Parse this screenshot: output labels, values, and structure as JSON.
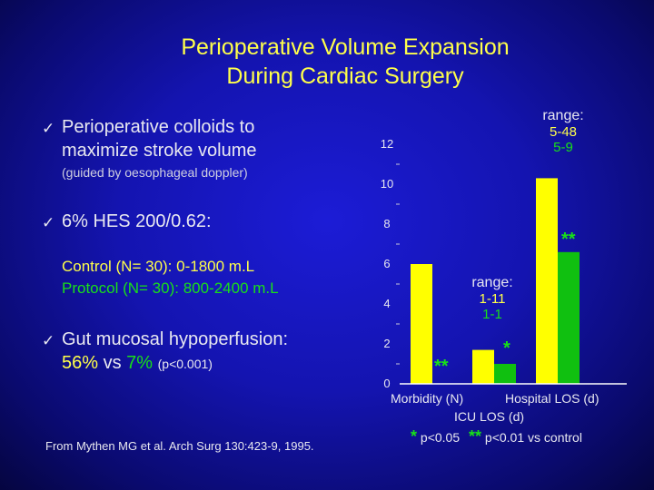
{
  "slide": {
    "title_line1": "Perioperative Volume Expansion",
    "title_line2": "During Cardiac Surgery",
    "check_glyph": "✓",
    "bullet1_line1": "Perioperative colloids to",
    "bullet1_line2": "maximize stroke volume",
    "bullet1_note": "(guided by oesophageal doppler)",
    "bullet2": "6% HES 200/0.62:",
    "control_line": "Control (N= 30): 0-1800 m.L",
    "protocol_line": "Protocol (N= 30): 800-2400 m.L",
    "bullet3_line1": "Gut mucosal hypoperfusion:",
    "result_pct1": "56%",
    "result_vs": "vs",
    "result_pct2": "7%",
    "result_p": "(p<0.001)",
    "citation": "From Mythen MG et al. Arch Surg 130:423-9, 1995."
  },
  "colors": {
    "control": "#ffff00",
    "protocol": "#10c010",
    "title": "#ffff4a",
    "background": "#1414b0"
  },
  "chart_data": {
    "type": "bar",
    "categories": [
      "Morbidity (N)",
      "ICU LOS (d)",
      "Hospital LOS (d)"
    ],
    "series": [
      {
        "color": "#ffff00",
        "values": [
          6,
          1.7,
          10.3
        ]
      },
      {
        "color": "#10c010",
        "values": [
          0,
          1,
          6.6
        ]
      }
    ],
    "y_ticks": [
      "0",
      "2",
      "4",
      "6",
      "8",
      "10",
      "12"
    ],
    "ylim": [
      0,
      12
    ],
    "annotations": {
      "morbidity_sig": "**",
      "icu_sig": "*",
      "hospital_sig": "**",
      "icu_range_label": "range:",
      "icu_range_control": "1-11",
      "icu_range_protocol": "1-1",
      "hosp_range_label": "range:",
      "hosp_range_control": "5-48",
      "hosp_range_protocol": "5-9"
    },
    "footnote": {
      "star1": "*",
      "text1": "p<0.05",
      "star2": "**",
      "text2": "p<0.01 vs control"
    }
  }
}
